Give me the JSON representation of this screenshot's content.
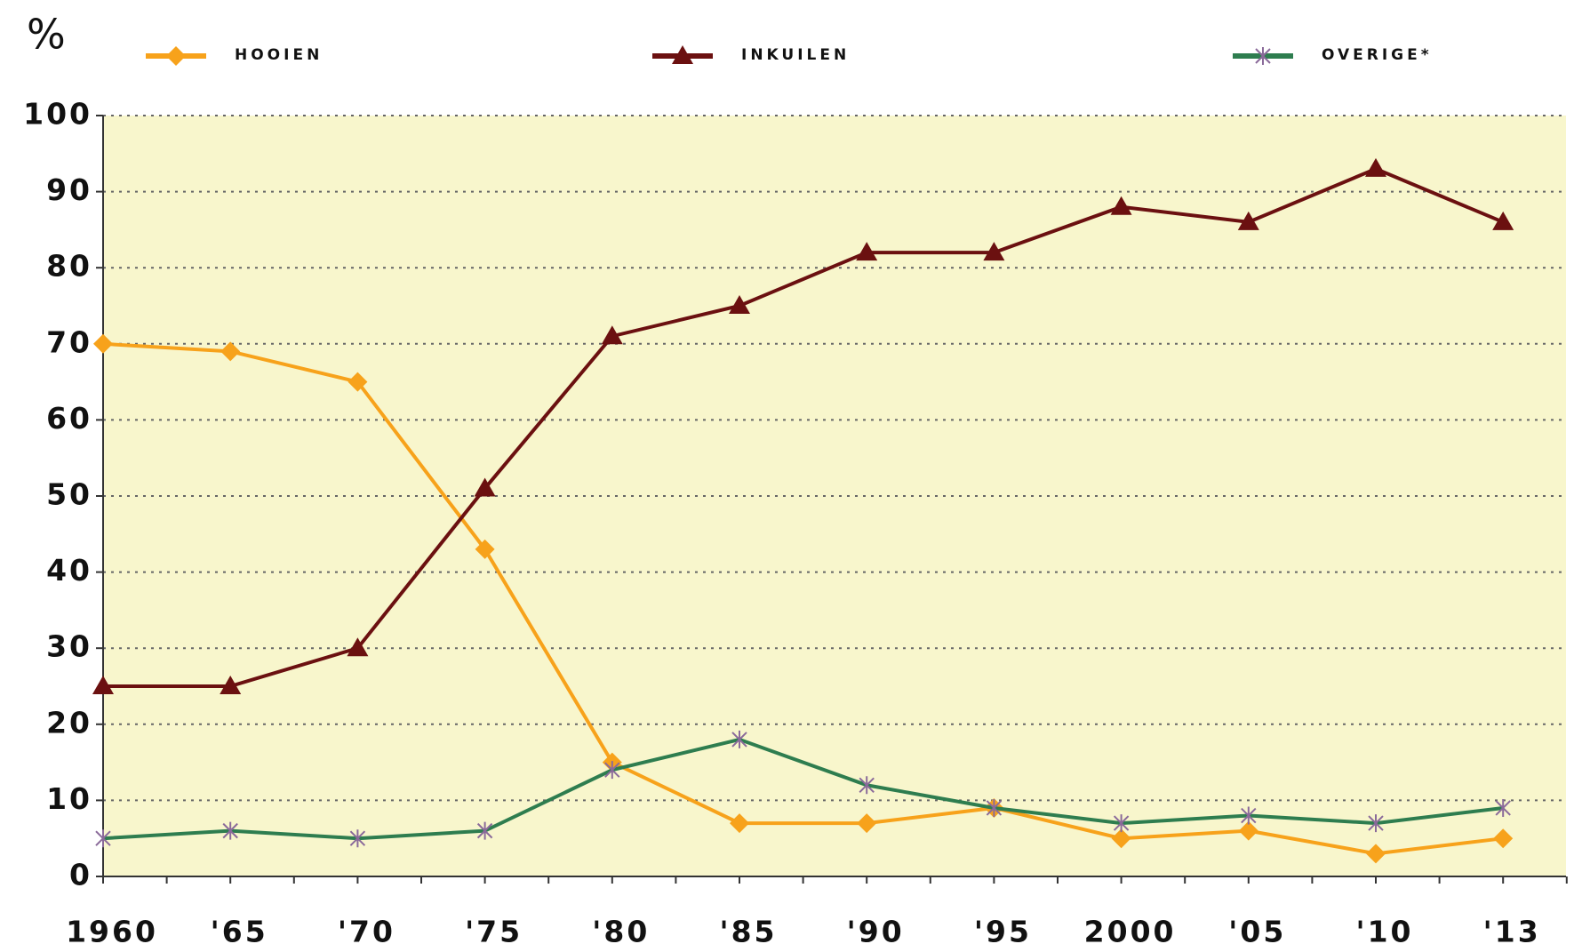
{
  "chart_data": {
    "type": "line",
    "y_label": "%",
    "categories": [
      "1960",
      "'65",
      "'70",
      "'75",
      "'80",
      "'85",
      "'90",
      "'95",
      "2000",
      "'05",
      "'10",
      "'13"
    ],
    "series": [
      {
        "name": "HOOIEN",
        "color": "#f7a21b",
        "marker": "diamond",
        "values": [
          70,
          69,
          65,
          43,
          15,
          7,
          7,
          9,
          5,
          6,
          3,
          5
        ]
      },
      {
        "name": "INKUILEN",
        "color": "#6b1010",
        "marker": "triangle",
        "values": [
          25,
          25,
          30,
          51,
          71,
          75,
          82,
          82,
          88,
          86,
          93,
          86
        ]
      },
      {
        "name": "OVERIGE*",
        "color": "#2e7d4f",
        "marker": "star",
        "values": [
          5,
          6,
          5,
          6,
          14,
          18,
          12,
          9,
          7,
          8,
          7,
          9
        ]
      }
    ],
    "ylim": [
      0,
      100
    ],
    "yticks": [
      0,
      10,
      20,
      30,
      40,
      50,
      60,
      70,
      80,
      90,
      100
    ],
    "grid": true
  }
}
